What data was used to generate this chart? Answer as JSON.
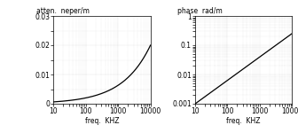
{
  "title_left": "atten.  neper/m",
  "title_right": "phase  rad/m",
  "xlabel": "freq.  KHZ",
  "freq_min": 10,
  "freq_max": 10000,
  "atten_ylim": [
    0,
    0.03
  ],
  "atten_yticks": [
    0,
    0.01,
    0.02,
    0.03
  ],
  "atten_yticklabels": [
    "0",
    "0.01",
    "0.02",
    "0.03"
  ],
  "phase_ylim_log": [
    -3,
    0
  ],
  "phase_yticks": [
    0.001,
    0.01,
    0.1,
    1
  ],
  "phase_yticklabels": [
    "0.001",
    "0.01",
    "0.1",
    "1"
  ],
  "xticks": [
    10,
    100,
    1000,
    10000
  ],
  "xticklabels": [
    "10",
    "100",
    "1000",
    "10000"
  ],
  "background_color": "#ffffff",
  "line_color": "#000000",
  "grid_color": "#aaaaaa",
  "figsize": [
    3.36,
    1.5
  ],
  "dpi": 100
}
